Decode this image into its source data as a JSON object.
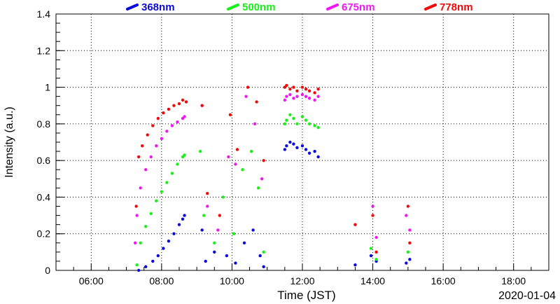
{
  "chart_data": {
    "type": "scatter",
    "title": "",
    "xlabel": "Time (JST)",
    "ylabel": "Intensity (a.u.)",
    "date_label": "2020-01-04",
    "x_unit": "hours JST",
    "xlim": [
      5.0,
      19.0
    ],
    "ylim": [
      0,
      1.4
    ],
    "x_ticks": [
      {
        "value": 6,
        "label": "06:00"
      },
      {
        "value": 8,
        "label": "08:00"
      },
      {
        "value": 10,
        "label": "10:00"
      },
      {
        "value": 12,
        "label": "12:00"
      },
      {
        "value": 14,
        "label": "14:00"
      },
      {
        "value": 16,
        "label": "16:00"
      },
      {
        "value": 18,
        "label": "18:00"
      }
    ],
    "y_ticks": [
      {
        "value": 0,
        "label": "0"
      },
      {
        "value": 0.2,
        "label": "0.2"
      },
      {
        "value": 0.4,
        "label": "0.4"
      },
      {
        "value": 0.6,
        "label": "0.6"
      },
      {
        "value": 0.8,
        "label": "0.8"
      },
      {
        "value": 1,
        "label": "1"
      },
      {
        "value": 1.2,
        "label": "1.2"
      },
      {
        "value": 1.4,
        "label": "1.4"
      }
    ],
    "grid": true,
    "legend_placement": "top",
    "series": [
      {
        "name": "368nm",
        "color": "#0a0adc",
        "x": [
          7.35,
          7.55,
          7.75,
          7.9,
          8.05,
          8.2,
          8.35,
          8.5,
          8.6,
          8.65,
          9.15,
          9.25,
          9.5,
          9.85,
          10.1,
          10.35,
          10.6,
          10.8,
          10.9,
          11.5,
          11.55,
          11.65,
          11.75,
          11.85,
          12.0,
          12.1,
          12.2,
          12.35,
          12.45,
          13.5,
          13.95,
          14.1,
          14.95,
          15.05
        ],
        "y": [
          0.0,
          0.02,
          0.05,
          0.08,
          0.12,
          0.16,
          0.2,
          0.25,
          0.28,
          0.3,
          0.22,
          0.05,
          0.1,
          0.08,
          0.04,
          0.15,
          0.22,
          0.08,
          0.02,
          0.66,
          0.68,
          0.7,
          0.69,
          0.67,
          0.68,
          0.66,
          0.64,
          0.65,
          0.62,
          0.03,
          0.08,
          0.05,
          0.04,
          0.06
        ]
      },
      {
        "name": "500nm",
        "color": "#18f018",
        "x": [
          7.3,
          7.4,
          7.55,
          7.7,
          7.85,
          8.0,
          8.15,
          8.3,
          8.45,
          8.6,
          8.65,
          9.1,
          9.2,
          9.5,
          9.75,
          10.05,
          10.3,
          10.55,
          10.75,
          10.9,
          11.5,
          11.55,
          11.65,
          11.75,
          11.85,
          12.0,
          12.1,
          12.2,
          12.35,
          12.45,
          13.95,
          14.1,
          15.0
        ],
        "y": [
          0.03,
          0.15,
          0.24,
          0.31,
          0.38,
          0.43,
          0.48,
          0.53,
          0.58,
          0.62,
          0.63,
          0.65,
          0.3,
          0.15,
          0.4,
          0.2,
          0.55,
          0.65,
          0.45,
          0.1,
          0.8,
          0.82,
          0.85,
          0.83,
          0.8,
          0.84,
          0.82,
          0.8,
          0.79,
          0.78,
          0.12,
          0.06,
          0.1
        ]
      },
      {
        "name": "675nm",
        "color": "#f018f0",
        "x": [
          7.25,
          7.3,
          7.4,
          7.55,
          7.7,
          7.85,
          8.0,
          8.15,
          8.3,
          8.45,
          8.6,
          8.65,
          9.15,
          9.3,
          9.6,
          9.9,
          10.1,
          10.4,
          10.65,
          10.85,
          11.5,
          11.55,
          11.65,
          11.75,
          11.85,
          12.0,
          12.1,
          12.2,
          12.35,
          12.45,
          14.0,
          14.1,
          14.95,
          15.05
        ],
        "y": [
          0.15,
          0.3,
          0.45,
          0.55,
          0.62,
          0.68,
          0.72,
          0.76,
          0.79,
          0.81,
          0.83,
          0.84,
          0.9,
          0.35,
          0.22,
          0.62,
          0.58,
          0.95,
          0.8,
          0.5,
          0.93,
          0.95,
          0.96,
          0.94,
          0.95,
          0.96,
          0.95,
          0.94,
          0.93,
          0.95,
          0.35,
          0.18,
          0.3,
          0.22
        ]
      },
      {
        "name": "778nm",
        "color": "#f00a0a",
        "x": [
          7.28,
          7.35,
          7.45,
          7.6,
          7.75,
          7.9,
          8.05,
          8.2,
          8.35,
          8.5,
          8.6,
          8.7,
          9.15,
          9.3,
          9.65,
          9.95,
          10.15,
          10.45,
          10.7,
          10.9,
          11.5,
          11.55,
          11.65,
          11.75,
          11.85,
          12.0,
          12.1,
          12.2,
          12.35,
          12.45,
          13.5,
          14.0,
          14.1,
          15.0,
          15.05
        ],
        "y": [
          0.35,
          0.62,
          0.68,
          0.74,
          0.79,
          0.83,
          0.86,
          0.88,
          0.9,
          0.91,
          0.93,
          0.92,
          0.9,
          0.42,
          0.3,
          0.85,
          0.66,
          1.0,
          0.92,
          0.6,
          1.0,
          1.01,
          0.99,
          1.0,
          0.98,
          1.0,
          0.99,
          0.98,
          0.97,
          0.99,
          0.25,
          0.3,
          0.1,
          0.35,
          0.15
        ]
      }
    ]
  }
}
